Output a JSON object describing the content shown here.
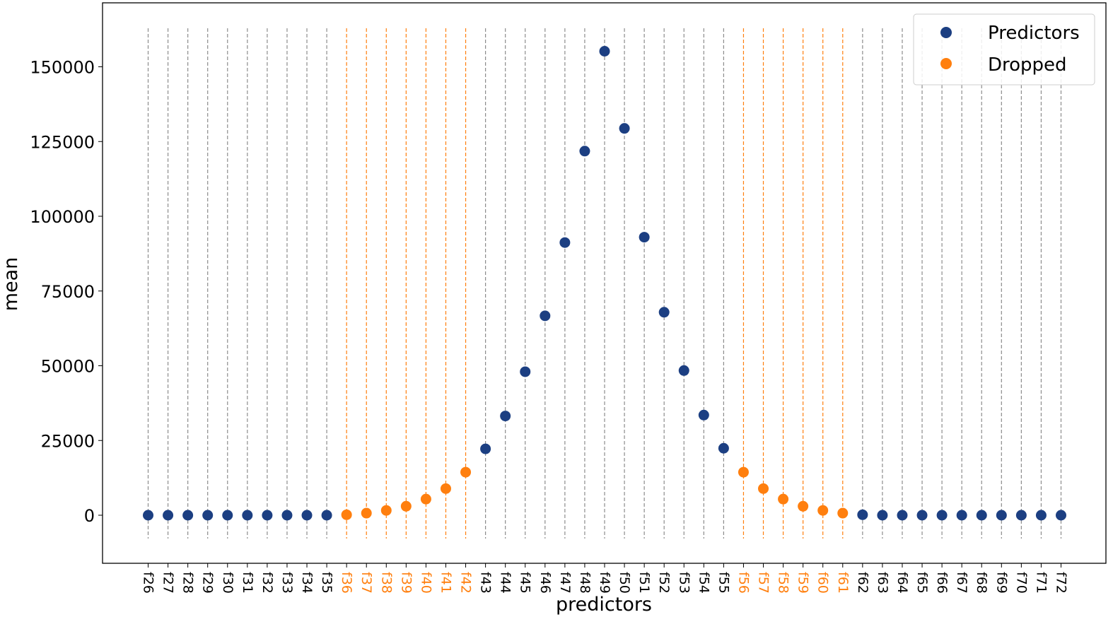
{
  "chart_data": {
    "type": "scatter",
    "title": "",
    "xlabel": "predictors",
    "ylabel": "mean",
    "ylim": [
      -16000,
      166000
    ],
    "yticks": [
      0,
      25000,
      50000,
      75000,
      100000,
      125000,
      150000
    ],
    "grid": false,
    "legend_position": "top-right",
    "colors": {
      "predictors": "#1c3f82",
      "dropped": "#ff7f0e",
      "guide": "#8c8c8c"
    },
    "categories": [
      "f26",
      "f27",
      "f28",
      "f29",
      "f30",
      "f31",
      "f32",
      "f33",
      "f34",
      "f35",
      "f36",
      "f37",
      "f38",
      "f39",
      "f40",
      "f41",
      "f42",
      "f43",
      "f44",
      "f45",
      "f46",
      "f47",
      "f48",
      "f49",
      "f50",
      "f51",
      "f52",
      "f53",
      "f54",
      "f55",
      "f56",
      "f57",
      "f58",
      "f59",
      "f60",
      "f61",
      "f62",
      "f63",
      "f64",
      "f65",
      "f66",
      "f67",
      "f68",
      "f69",
      "f70",
      "f71",
      "f72"
    ],
    "series": [
      {
        "name": "Predictors",
        "color": "#1c3f82",
        "points": [
          {
            "x": "f26",
            "y": 0
          },
          {
            "x": "f27",
            "y": 0
          },
          {
            "x": "f28",
            "y": 0
          },
          {
            "x": "f29",
            "y": 0
          },
          {
            "x": "f30",
            "y": 0
          },
          {
            "x": "f31",
            "y": 0
          },
          {
            "x": "f32",
            "y": 0
          },
          {
            "x": "f33",
            "y": 0
          },
          {
            "x": "f34",
            "y": 0
          },
          {
            "x": "f35",
            "y": 0
          },
          {
            "x": "f43",
            "y": 22200
          },
          {
            "x": "f44",
            "y": 33200
          },
          {
            "x": "f45",
            "y": 48000
          },
          {
            "x": "f46",
            "y": 66700
          },
          {
            "x": "f47",
            "y": 91200
          },
          {
            "x": "f48",
            "y": 121800
          },
          {
            "x": "f49",
            "y": 155200
          },
          {
            "x": "f50",
            "y": 129400
          },
          {
            "x": "f51",
            "y": 93000
          },
          {
            "x": "f52",
            "y": 67900
          },
          {
            "x": "f53",
            "y": 48400
          },
          {
            "x": "f54",
            "y": 33500
          },
          {
            "x": "f55",
            "y": 22400
          },
          {
            "x": "f62",
            "y": 150
          },
          {
            "x": "f63",
            "y": 0
          },
          {
            "x": "f64",
            "y": 0
          },
          {
            "x": "f65",
            "y": 0
          },
          {
            "x": "f66",
            "y": 0
          },
          {
            "x": "f67",
            "y": 0
          },
          {
            "x": "f68",
            "y": 0
          },
          {
            "x": "f69",
            "y": 0
          },
          {
            "x": "f70",
            "y": 0
          },
          {
            "x": "f71",
            "y": 0
          },
          {
            "x": "f72",
            "y": 0
          }
        ]
      },
      {
        "name": "Dropped",
        "color": "#ff7f0e",
        "points": [
          {
            "x": "f36",
            "y": 150
          },
          {
            "x": "f37",
            "y": 700
          },
          {
            "x": "f38",
            "y": 1600
          },
          {
            "x": "f39",
            "y": 3000
          },
          {
            "x": "f40",
            "y": 5400
          },
          {
            "x": "f41",
            "y": 8900
          },
          {
            "x": "f42",
            "y": 14400
          },
          {
            "x": "f56",
            "y": 14400
          },
          {
            "x": "f57",
            "y": 8900
          },
          {
            "x": "f58",
            "y": 5400
          },
          {
            "x": "f59",
            "y": 3000
          },
          {
            "x": "f60",
            "y": 1600
          },
          {
            "x": "f61",
            "y": 700
          }
        ]
      }
    ]
  }
}
